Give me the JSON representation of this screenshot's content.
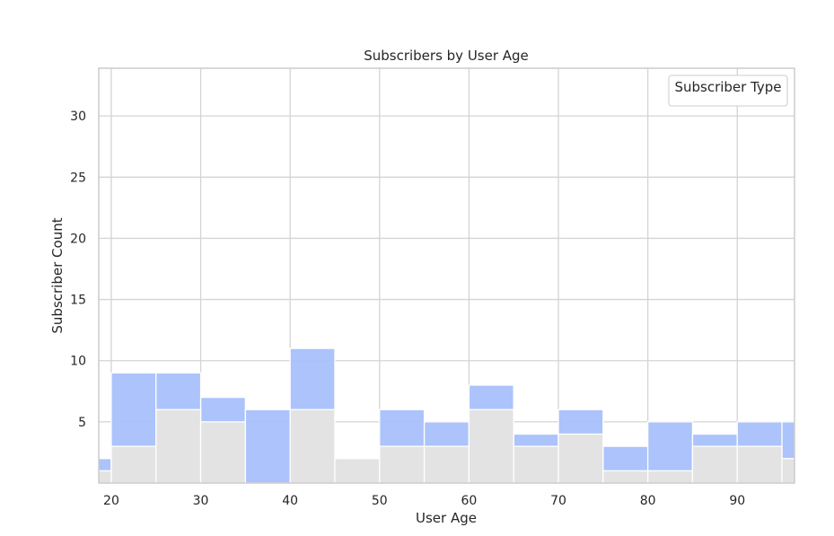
{
  "chart_data": {
    "type": "bar",
    "title": "Subscribers by User Age",
    "xlabel": "User Age",
    "ylabel": "Subscriber Count",
    "xlim": [
      18.6,
      96.4
    ],
    "ylim": [
      0,
      33.9
    ],
    "x_ticks": [
      20,
      30,
      40,
      50,
      60,
      70,
      80,
      90
    ],
    "y_ticks": [
      5,
      10,
      15,
      20,
      25,
      30
    ],
    "grid": true,
    "legend": {
      "title": "Subscriber Type",
      "placement": "top-right",
      "entries": []
    },
    "bin_edges": [
      15,
      20,
      25,
      30,
      35,
      40,
      45,
      50,
      55,
      60,
      65,
      70,
      75,
      80,
      85,
      90,
      95,
      100
    ],
    "series": [
      {
        "color": "#e3e3e3",
        "values": [
          1,
          3,
          6,
          5,
          0,
          6,
          2,
          3,
          3,
          6,
          3,
          4,
          1,
          1,
          3,
          3,
          2
        ]
      },
      {
        "color": "#a8c0fb",
        "values": [
          2,
          9,
          9,
          7,
          6,
          11,
          2,
          6,
          5,
          8,
          4,
          6,
          3,
          5,
          4,
          5,
          5
        ]
      }
    ],
    "colors": {
      "grid": "#d4d4d4",
      "frame": "#cccccc",
      "bar_edge": "#ffffff"
    }
  }
}
